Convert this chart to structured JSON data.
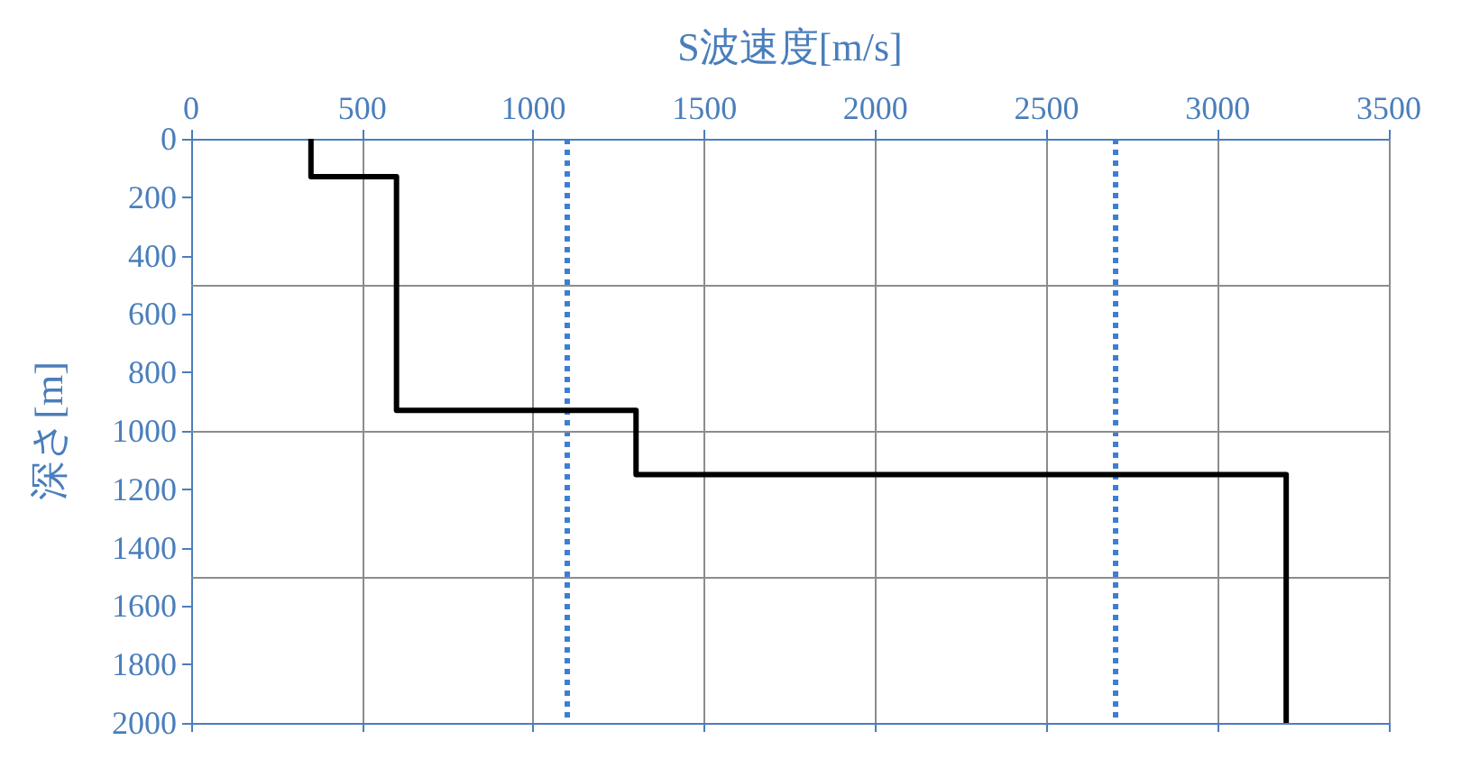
{
  "chart_data": {
    "type": "line",
    "xlabel": "S波速度[m/s]",
    "ylabel": "深さ[m]",
    "xlim": [
      0,
      3500
    ],
    "xticks": [
      0,
      500,
      1000,
      1500,
      2000,
      2500,
      3000,
      3500
    ],
    "ylim": [
      2000,
      0
    ],
    "yticks": [
      0,
      200,
      400,
      600,
      800,
      1000,
      1200,
      1400,
      1600,
      1800,
      2000
    ],
    "series": [
      {
        "color": "#000000",
        "x": [
          350,
          350,
          600,
          600,
          1300,
          1300,
          3200,
          3200
        ],
        "values": [
          0,
          130,
          130,
          930,
          930,
          1150,
          1150,
          2000
        ]
      }
    ],
    "ref_lines": [
      {
        "axis": "x",
        "value": 1100,
        "color": "#3a7fd5",
        "line_style": "dotted"
      },
      {
        "axis": "x",
        "value": 2700,
        "color": "#3a7fd5",
        "line_style": "dotted"
      },
      {
        "axis": "y",
        "value": 500,
        "color": "#8c8c8c",
        "line_style": "solid"
      },
      {
        "axis": "y",
        "value": 1000,
        "color": "#8c8c8c",
        "line_style": "solid"
      },
      {
        "axis": "y",
        "value": 1500,
        "color": "#8c8c8c",
        "line_style": "solid"
      }
    ],
    "grid": "x",
    "marker": "none",
    "line_style": "solid"
  }
}
